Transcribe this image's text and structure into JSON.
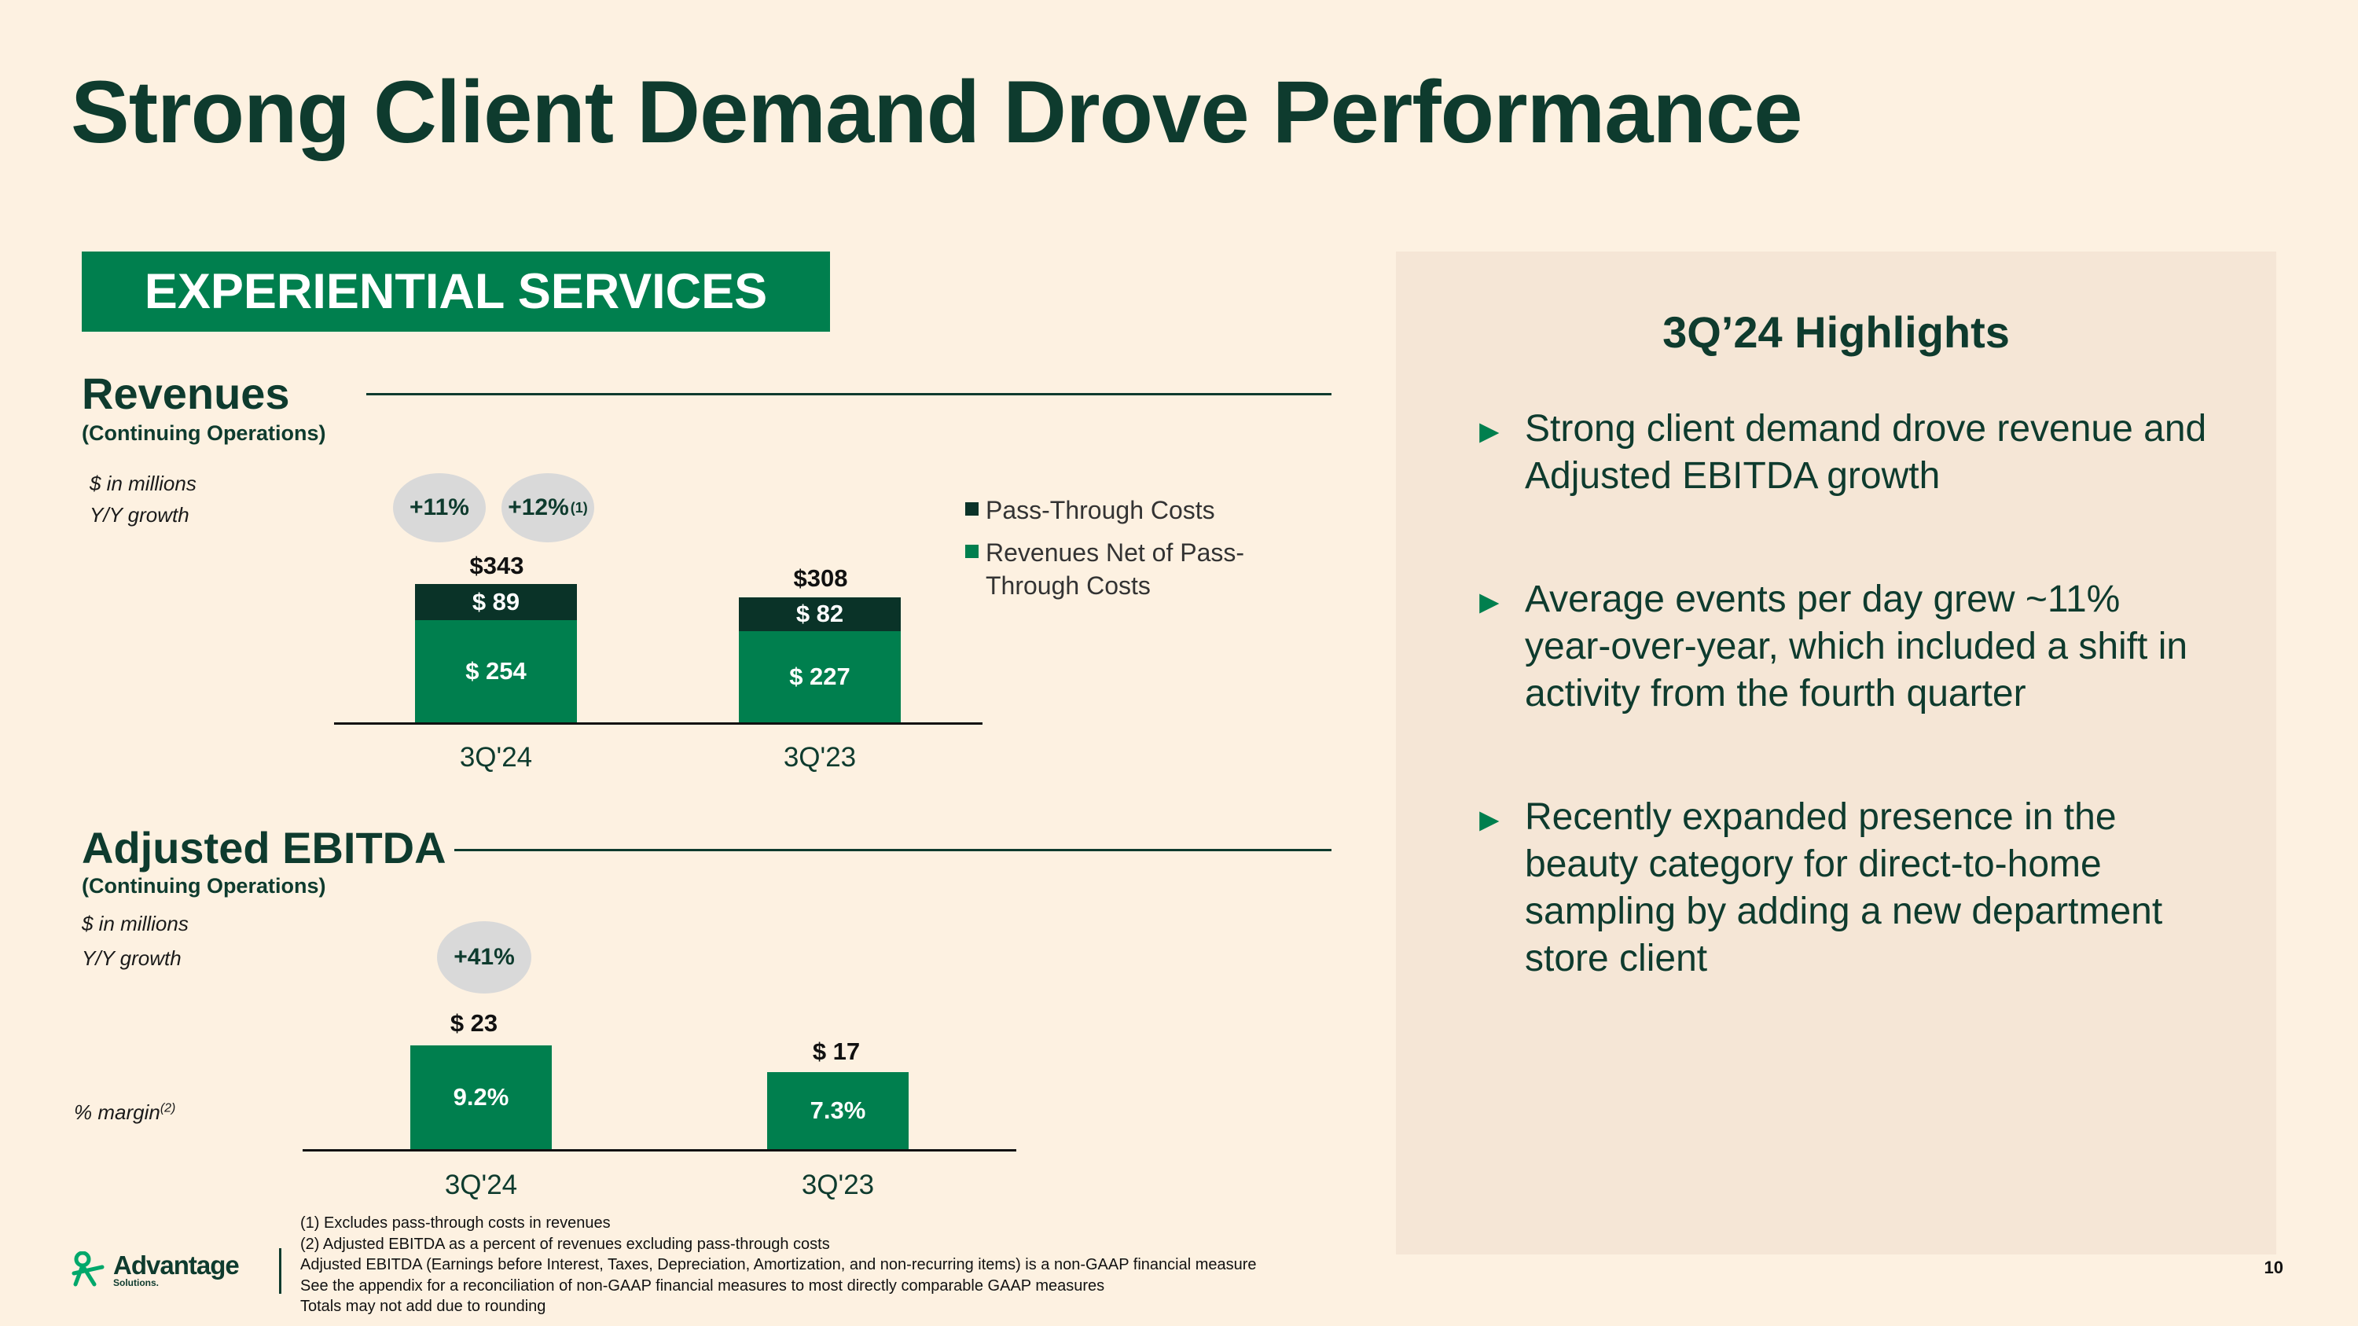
{
  "title": "Strong Client Demand Drove Performance",
  "banner": "EXPERIENTIAL SERVICES",
  "revenues": {
    "title": "Revenues",
    "subtitle": "(Continuing Operations)",
    "unit_note": "$ in millions",
    "growth_note": "Y/Y growth",
    "growth_bubbles": [
      {
        "text": "+11%",
        "sup": ""
      },
      {
        "text": "+12%",
        "sup": "(1)"
      }
    ],
    "legend": [
      {
        "label": "Pass-Through Costs",
        "color": "#0A3328"
      },
      {
        "label": "Revenues Net of Pass-Through Costs",
        "color": "#007F4E"
      }
    ]
  },
  "ebitda": {
    "title": "Adjusted EBITDA",
    "subtitle": "(Continuing Operations)",
    "unit_note": "$ in millions",
    "growth_note": "Y/Y growth",
    "growth_bubble": "+41%",
    "margin_label": "% margin",
    "margin_sup": "(2)"
  },
  "chart_data": [
    {
      "type": "bar",
      "title": "Revenues",
      "stacked": true,
      "categories": [
        "3Q'24",
        "3Q'23"
      ],
      "series": [
        {
          "name": "Revenues Net of Pass-Through Costs",
          "values": [
            254,
            227
          ],
          "labels": [
            "$ 254",
            "$ 227"
          ]
        },
        {
          "name": "Pass-Through Costs",
          "values": [
            89,
            82
          ],
          "labels": [
            "$ 89",
            "$ 82"
          ]
        }
      ],
      "totals": [
        343,
        308
      ],
      "total_labels": [
        "$343",
        "$308"
      ],
      "ylim": [
        0,
        343
      ]
    },
    {
      "type": "bar",
      "title": "Adjusted EBITDA",
      "categories": [
        "3Q'24",
        "3Q'23"
      ],
      "values": [
        23,
        17
      ],
      "value_labels": [
        "$ 23",
        "$ 17"
      ],
      "margins": [
        "9.2%",
        "7.3%"
      ],
      "ylim": [
        0,
        23
      ]
    }
  ],
  "highlights": {
    "title": "3Q’24 Highlights",
    "arrow": "►",
    "items": [
      "Strong client demand drove revenue and Adjusted EBITDA growth",
      "Average events per day grew ~11% year-over-year, which included a shift in activity from the fourth quarter",
      "Recently expanded presence in the beauty category for direct-to-home sampling by adding a new department store client"
    ]
  },
  "footnotes": [
    "(1)   Excludes pass-through costs in revenues",
    "(2)   Adjusted EBITDA as a percent of revenues excluding pass-through costs",
    "Adjusted EBITDA (Earnings before Interest, Taxes, Depreciation, Amortization, and non-recurring items) is a non-GAAP financial measure",
    "See the appendix for a reconciliation of non-GAAP financial measures to most directly comparable GAAP measures",
    "Totals may not add due to rounding"
  ],
  "logo": {
    "name": "Advantage",
    "sub": "Solutions."
  },
  "page_number": "10",
  "colors": {
    "dark_green": "#0E3B2E",
    "brand_green": "#007F4E",
    "pass_through": "#0A3328",
    "background": "#FDF1E1",
    "panel": "#F5E6D6"
  }
}
